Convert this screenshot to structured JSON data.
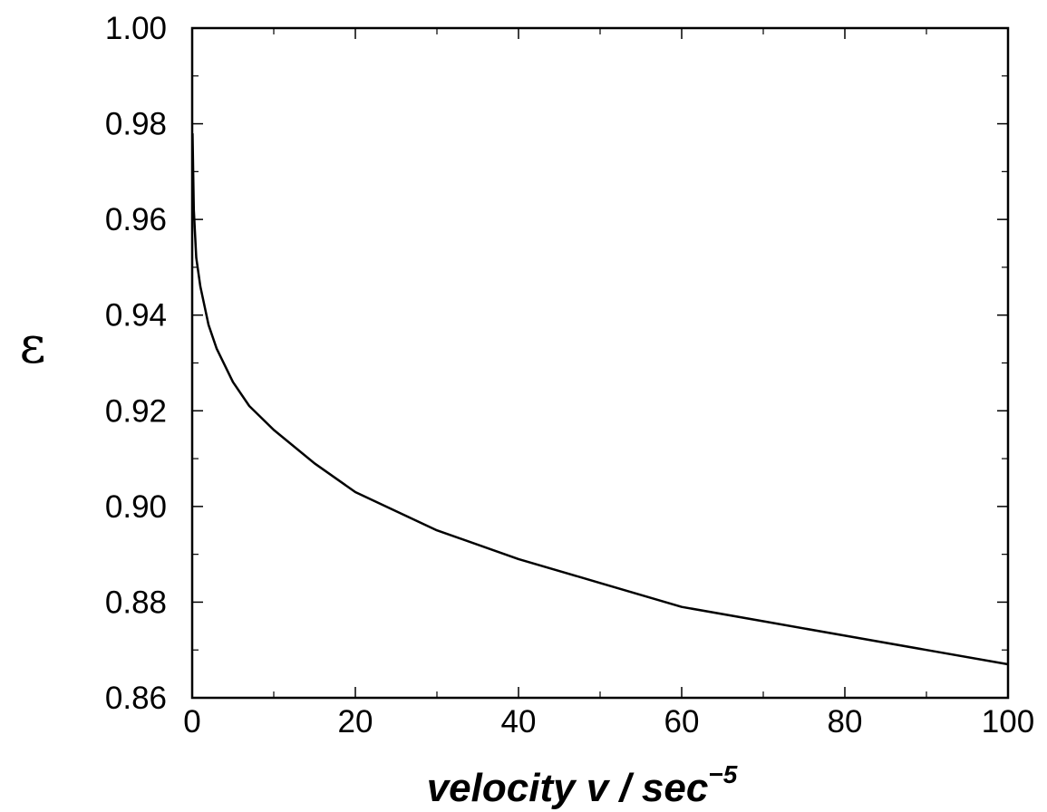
{
  "chart_data": {
    "type": "line",
    "title": "",
    "xlabel": "velocity v / sec",
    "xlabel_superscript": "−5",
    "ylabel": "ε",
    "xlim": [
      0,
      100
    ],
    "ylim": [
      0.86,
      1.0
    ],
    "x_ticks": [
      0,
      20,
      40,
      60,
      80,
      100
    ],
    "x_tick_labels": [
      "0",
      "20",
      "40",
      "60",
      "80",
      "100"
    ],
    "y_ticks": [
      0.86,
      0.88,
      0.9,
      0.92,
      0.94,
      0.96,
      0.98,
      1.0
    ],
    "y_tick_labels": [
      "0.86",
      "0.88",
      "0.90",
      "0.92",
      "0.94",
      "0.96",
      "0.98",
      "1.00"
    ],
    "grid": false,
    "legend": "none",
    "series": [
      {
        "color": "#000000",
        "x": [
          0.05,
          0.2,
          0.5,
          1,
          2,
          3,
          5,
          7,
          10,
          15,
          20,
          25,
          30,
          40,
          50,
          60,
          70,
          80,
          90,
          100
        ],
        "y": [
          0.978,
          0.962,
          0.952,
          0.946,
          0.938,
          0.933,
          0.926,
          0.921,
          0.916,
          0.909,
          0.903,
          0.899,
          0.895,
          0.889,
          0.884,
          0.879,
          0.876,
          0.873,
          0.87,
          0.867
        ]
      }
    ]
  }
}
